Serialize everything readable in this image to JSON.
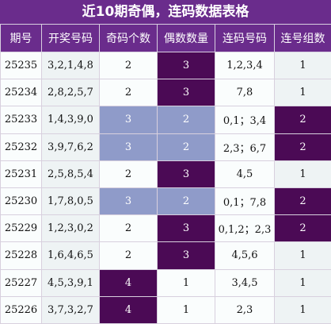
{
  "title": "近10期奇偶，连码数据表格",
  "headers": [
    "期号",
    "开奖号码",
    "奇码个数",
    "偶数数量",
    "连码号码",
    "连号组数"
  ],
  "rows": [
    {
      "issue": "25235",
      "numbers": "3,2,1,4,8",
      "odd": "2",
      "even": "3",
      "consec": "1,2,3,4",
      "groups": "1",
      "oe_style": "dark",
      "grp_style": "plain"
    },
    {
      "issue": "25234",
      "numbers": "2,8,2,5,7",
      "odd": "2",
      "even": "3",
      "consec": "7,8",
      "groups": "1",
      "oe_style": "dark",
      "grp_style": "plain"
    },
    {
      "issue": "25233",
      "numbers": "1,4,3,9,0",
      "odd": "3",
      "even": "2",
      "consec": "0,1；3,4",
      "groups": "2",
      "oe_style": "lav",
      "grp_style": "dark"
    },
    {
      "issue": "25232",
      "numbers": "3,9,7,6,2",
      "odd": "3",
      "even": "2",
      "consec": "2,3；6,7",
      "groups": "2",
      "oe_style": "lav",
      "grp_style": "dark"
    },
    {
      "issue": "25231",
      "numbers": "2,5,8,5,4",
      "odd": "2",
      "even": "3",
      "consec": "4,5",
      "groups": "1",
      "oe_style": "dark",
      "grp_style": "plain"
    },
    {
      "issue": "25230",
      "numbers": "1,7,8,0,5",
      "odd": "3",
      "even": "2",
      "consec": "0,1；7,8",
      "groups": "2",
      "oe_style": "lav",
      "grp_style": "dark"
    },
    {
      "issue": "25229",
      "numbers": "1,2,3,0,2",
      "odd": "2",
      "even": "3",
      "consec": "0,1,2；2,3",
      "groups": "2",
      "oe_style": "dark",
      "grp_style": "dark"
    },
    {
      "issue": "25228",
      "numbers": "1,6,4,6,5",
      "odd": "2",
      "even": "3",
      "consec": "4,5,6",
      "groups": "1",
      "oe_style": "dark",
      "grp_style": "plain"
    },
    {
      "issue": "25227",
      "numbers": "4,5,3,9,1",
      "odd": "4",
      "even": "1",
      "consec": "3,4,5",
      "groups": "1",
      "oe_style": "odd4",
      "grp_style": "plain"
    },
    {
      "issue": "25226",
      "numbers": "3,7,3,2,7",
      "odd": "4",
      "even": "1",
      "consec": "2,3",
      "groups": "1",
      "oe_style": "odd4",
      "grp_style": "plain"
    }
  ],
  "colors": {
    "header": "#6a2c8c",
    "dark": "#4b0a55",
    "lavender": "#8f9bc9"
  }
}
